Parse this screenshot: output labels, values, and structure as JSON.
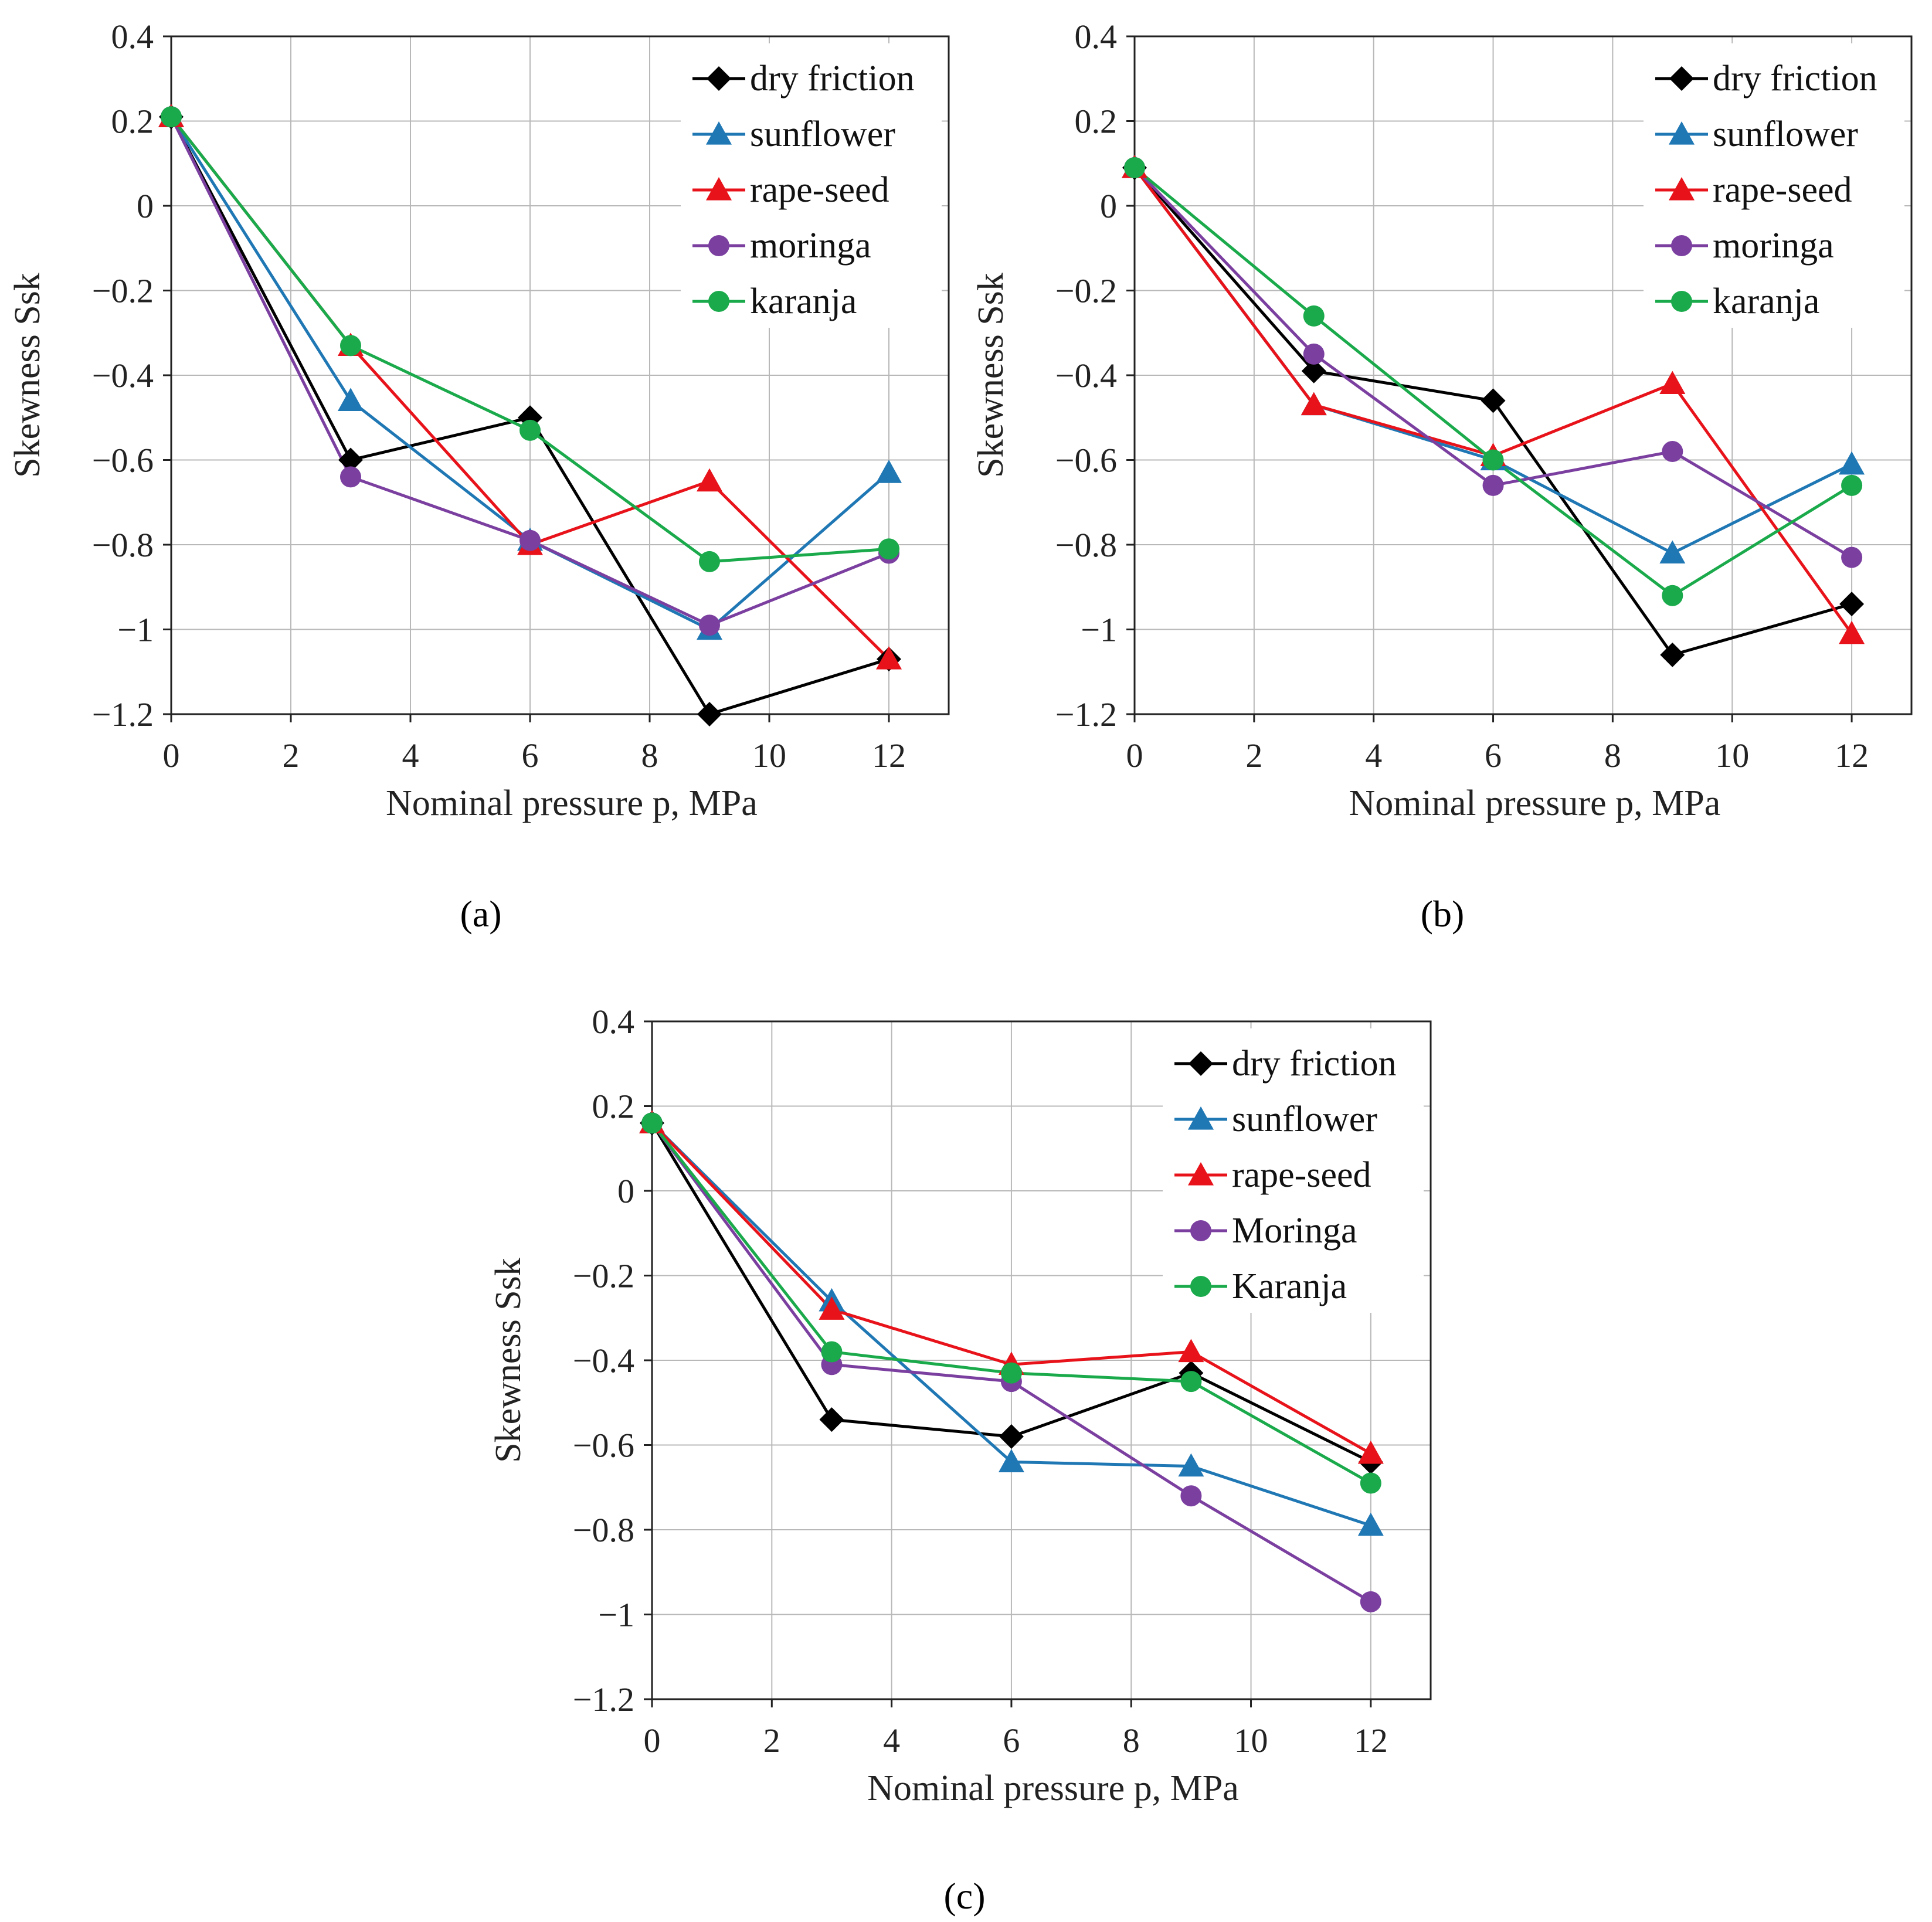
{
  "chart_data": [
    {
      "panel": "a",
      "type": "line",
      "xlabel": "Nominal pressure p, MPa",
      "ylabel": "Skewness Ssk",
      "xlim": [
        0,
        13
      ],
      "ylim": [
        -1.2,
        0.4
      ],
      "xticks": [
        0,
        2,
        4,
        6,
        8,
        10,
        12
      ],
      "xtick_labels": [
        "0",
        "2",
        "4",
        "6",
        "8",
        "10",
        "12"
      ],
      "yticks": [
        0.4,
        0.2,
        0,
        -0.2,
        -0.4,
        -0.6,
        -0.8,
        -1,
        -1.2
      ],
      "ytick_labels": [
        "0.4",
        "0.2",
        "0",
        "−0.2",
        "−0.4",
        "−0.6",
        "−0.8",
        "−1",
        "−1.2"
      ],
      "grid": true,
      "legend_position": "top-right",
      "x": [
        0,
        3,
        6,
        9,
        12
      ],
      "series": [
        {
          "name": "dry friction",
          "color": "#000000",
          "marker": "diamond",
          "values": [
            0.21,
            -0.6,
            -0.5,
            -1.2,
            -1.07
          ]
        },
        {
          "name": "sunflower",
          "color": "#1f77b4",
          "marker": "triangle",
          "values": [
            0.21,
            -0.46,
            -0.79,
            -1.0,
            -0.63
          ]
        },
        {
          "name": "rape-seed",
          "color": "#e8131a",
          "marker": "triangle",
          "values": [
            0.21,
            -0.33,
            -0.8,
            -0.65,
            -1.07
          ]
        },
        {
          "name": "moringa",
          "color": "#7b3fa0",
          "marker": "circle",
          "values": [
            0.21,
            -0.64,
            -0.79,
            -0.99,
            -0.82
          ]
        },
        {
          "name": "karanja",
          "color": "#1aaa4b",
          "marker": "circle",
          "values": [
            0.21,
            -0.33,
            -0.53,
            -0.84,
            -0.81
          ]
        }
      ]
    },
    {
      "panel": "b",
      "type": "line",
      "xlabel": "Nominal pressure p, MPa",
      "ylabel": "Skewness Ssk",
      "xlim": [
        0,
        13
      ],
      "ylim": [
        -1.2,
        0.4
      ],
      "xticks": [
        0,
        2,
        4,
        6,
        8,
        10,
        12
      ],
      "xtick_labels": [
        "0",
        "2",
        "4",
        "6",
        "8",
        "10",
        "12"
      ],
      "yticks": [
        0.4,
        0.2,
        0,
        -0.2,
        -0.4,
        -0.6,
        -0.8,
        -1,
        -1.2
      ],
      "ytick_labels": [
        "0.4",
        "0.2",
        "0",
        "−0.2",
        "−0.4",
        "−0.6",
        "−0.8",
        "−1",
        "−1.2"
      ],
      "grid": true,
      "legend_position": "top-right",
      "x": [
        0,
        3,
        6,
        9,
        12
      ],
      "series": [
        {
          "name": "dry friction",
          "color": "#000000",
          "marker": "diamond",
          "values": [
            0.09,
            -0.39,
            -0.46,
            -1.06,
            -0.94
          ]
        },
        {
          "name": "sunflower",
          "color": "#1f77b4",
          "marker": "triangle",
          "values": [
            0.09,
            -0.47,
            -0.6,
            -0.82,
            -0.61
          ]
        },
        {
          "name": "rape-seed",
          "color": "#e8131a",
          "marker": "triangle",
          "values": [
            0.09,
            -0.47,
            -0.59,
            -0.42,
            -1.01
          ]
        },
        {
          "name": "moringa",
          "color": "#7b3fa0",
          "marker": "circle",
          "values": [
            0.09,
            -0.35,
            -0.66,
            -0.58,
            -0.83
          ]
        },
        {
          "name": "karanja",
          "color": "#1aaa4b",
          "marker": "circle",
          "values": [
            0.09,
            -0.26,
            -0.6,
            -0.92,
            -0.66
          ]
        }
      ]
    },
    {
      "panel": "c",
      "type": "line",
      "xlabel": "Nominal pressure p, MPa",
      "ylabel": "Skewness Ssk",
      "xlim": [
        0,
        13
      ],
      "ylim": [
        -1.2,
        0.4
      ],
      "xticks": [
        0,
        2,
        4,
        6,
        8,
        10,
        12
      ],
      "xtick_labels": [
        "0",
        "2",
        "4",
        "6",
        "8",
        "10",
        "12"
      ],
      "yticks": [
        0.4,
        0.2,
        0,
        -0.2,
        -0.4,
        -0.6,
        -0.8,
        -1,
        -1.2
      ],
      "ytick_labels": [
        "0.4",
        "0.2",
        "0",
        "−0.2",
        "−0.4",
        "−0.6",
        "−0.8",
        "−1",
        "−1.2"
      ],
      "grid": true,
      "legend_position": "top-right",
      "x": [
        0,
        3,
        6,
        9,
        12
      ],
      "series": [
        {
          "name": "dry friction",
          "color": "#000000",
          "marker": "diamond",
          "values": [
            0.16,
            -0.54,
            -0.58,
            -0.43,
            -0.64
          ]
        },
        {
          "name": "sunflower",
          "color": "#1f77b4",
          "marker": "triangle",
          "values": [
            0.16,
            -0.26,
            -0.64,
            -0.65,
            -0.79
          ]
        },
        {
          "name": "rape-seed",
          "color": "#e8131a",
          "marker": "triangle",
          "values": [
            0.16,
            -0.28,
            -0.41,
            -0.38,
            -0.62
          ]
        },
        {
          "name": "Moringa",
          "color": "#7b3fa0",
          "marker": "circle",
          "values": [
            0.16,
            -0.41,
            -0.45,
            -0.72,
            -0.97
          ]
        },
        {
          "name": "Karanja",
          "color": "#1aaa4b",
          "marker": "circle",
          "values": [
            0.16,
            -0.38,
            -0.43,
            -0.45,
            -0.69
          ]
        }
      ]
    }
  ],
  "panel_labels": [
    "(a)",
    "(b)",
    "(c)"
  ]
}
